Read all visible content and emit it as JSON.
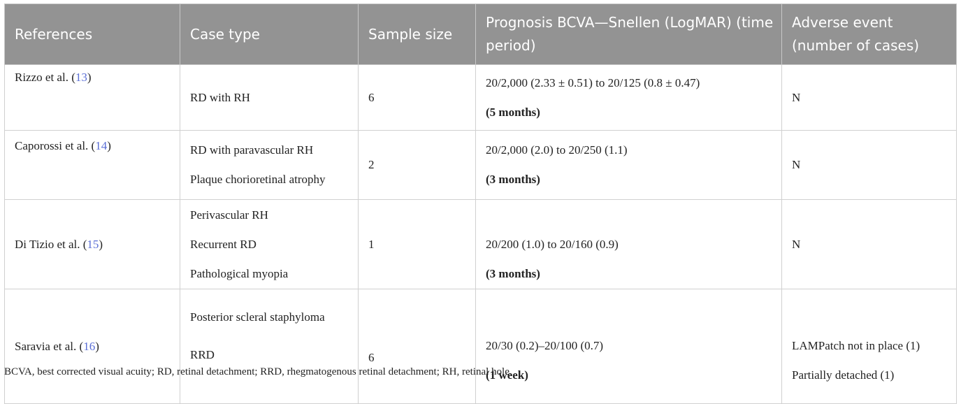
{
  "table": {
    "headers": [
      "References",
      "Case type",
      "Sample size",
      "Prognosis BCVA—Snellen (LogMAR) (time period)",
      "Adverse event (number of cases)"
    ],
    "rows": [
      {
        "ref_text": "Rizzo et al. (",
        "ref_num": "13",
        "case_type": [
          "RD with RH"
        ],
        "sample_size": "6",
        "prognosis": "20/2,000 (2.33 ± 0.51) to 20/125 (0.8 ± 0.47)",
        "period": "(5 months)",
        "adverse": [
          "N"
        ]
      },
      {
        "ref_text": "Caporossi et al. (",
        "ref_num": "14",
        "case_type": [
          "RD with paravascular RH",
          "Plaque chorioretinal atrophy"
        ],
        "sample_size": "2",
        "prognosis": "20/2,000 (2.0) to 20/250 (1.1)",
        "period": "(3 months)",
        "adverse": [
          "N"
        ]
      },
      {
        "ref_text": "Di Tizio et al. (",
        "ref_num": "15",
        "case_type": [
          "Perivascular RH",
          "Recurrent RD",
          "Pathological myopia"
        ],
        "sample_size": "1",
        "prognosis": "20/200 (1.0) to 20/160 (0.9)",
        "period": "(3 months)",
        "adverse": [
          "N"
        ]
      },
      {
        "ref_text": "Saravia et al. (",
        "ref_num": "16",
        "case_type": [
          "Posterior scleral staphyloma",
          "RRD"
        ],
        "sample_size": "6",
        "prognosis": "20/30 (0.2)–20/100 (0.7)",
        "period": "(1 week)",
        "adverse": [
          "LAMPatch not in place (1)",
          "Partially detached (1)"
        ]
      }
    ],
    "ref_close": ")",
    "footnote": "BCVA, best corrected visual acuity; RD, retinal detachment; RRD, rhegmatogenous retinal detachment; RH, retinal hole."
  }
}
